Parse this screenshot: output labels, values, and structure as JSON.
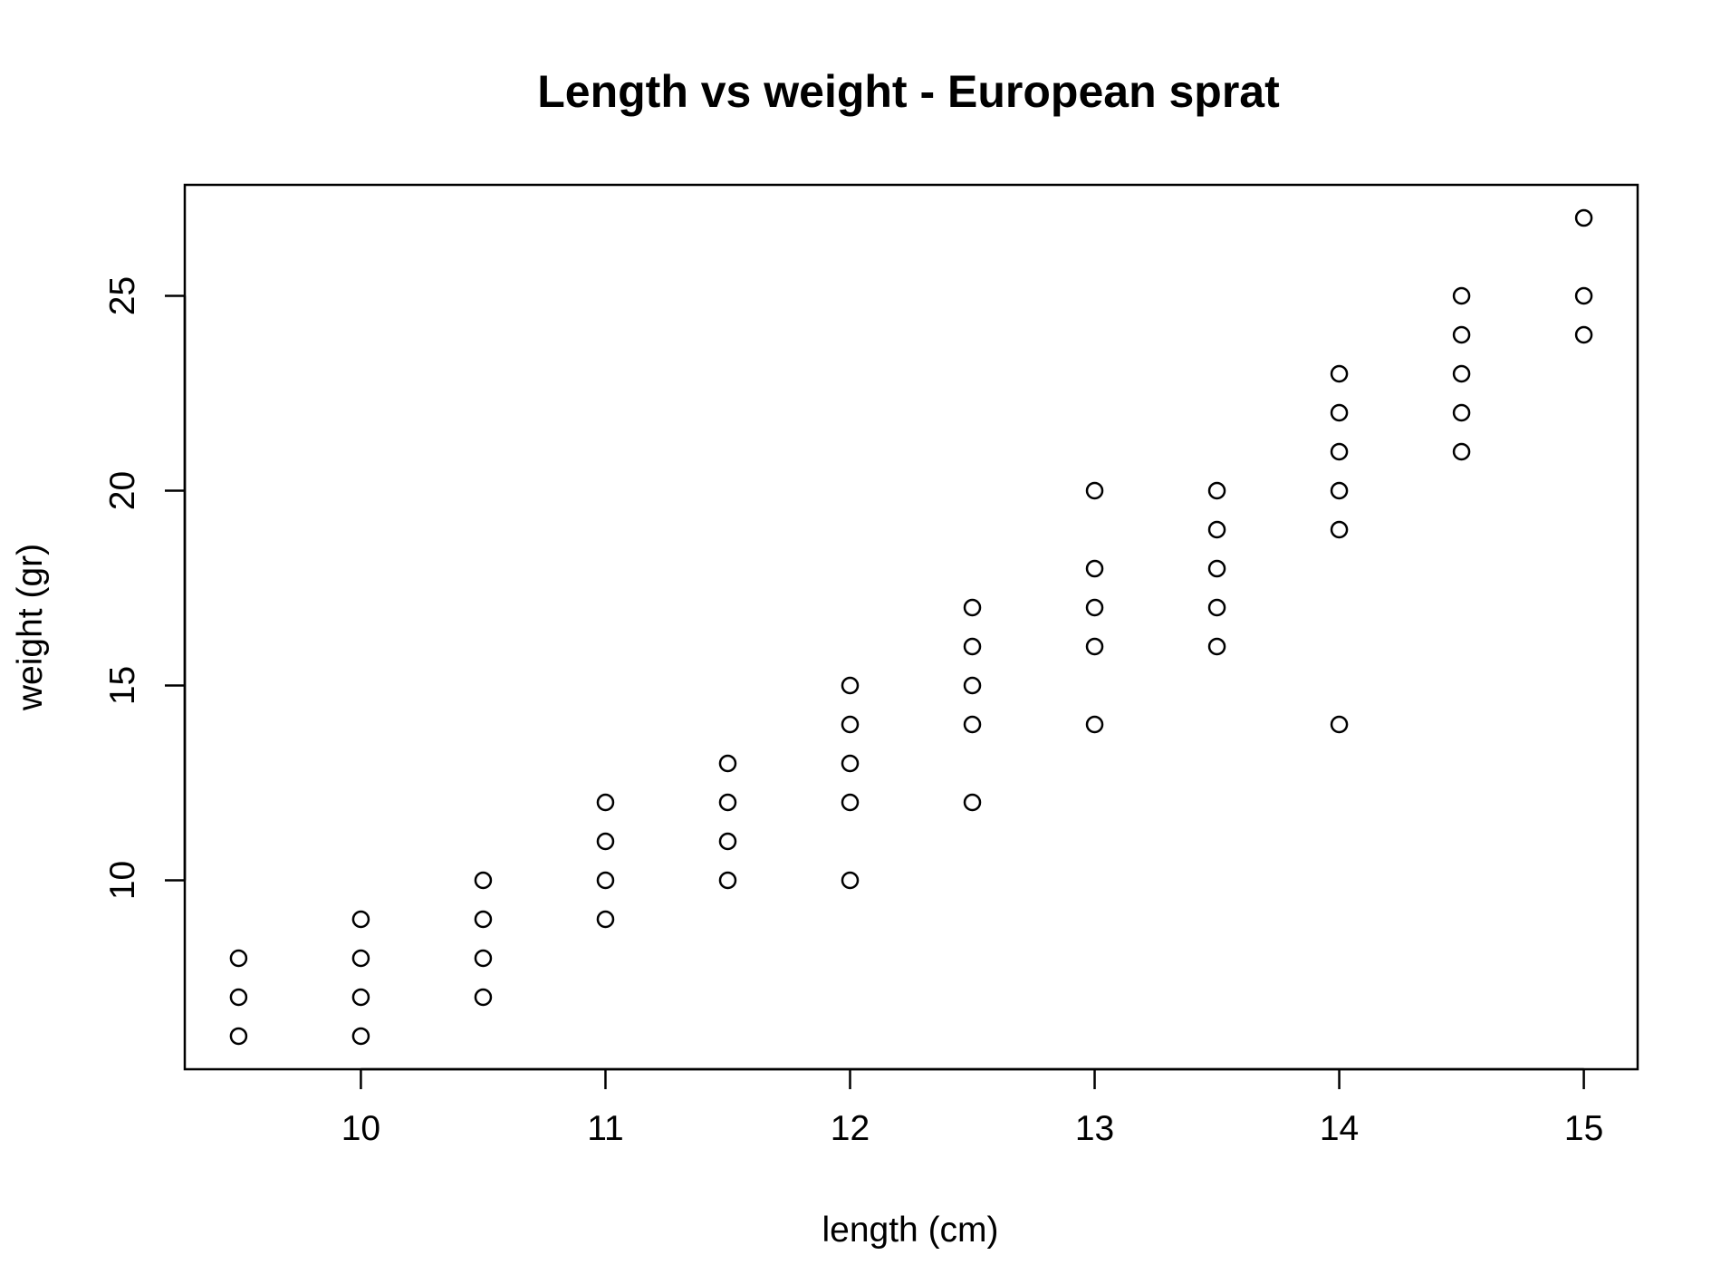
{
  "chart_data": {
    "type": "scatter",
    "title": "Length vs weight - European sprat",
    "xlabel": "length (cm)",
    "ylabel": "weight (gr)",
    "xlim": [
      9.28,
      15.22
    ],
    "ylim": [
      5.15,
      27.85
    ],
    "x_ticks": [
      10,
      11,
      12,
      13,
      14,
      15
    ],
    "y_ticks": [
      10,
      15,
      20,
      25
    ],
    "x_tick_labels": [
      "10",
      "11",
      "12",
      "13",
      "14",
      "15"
    ],
    "y_tick_labels": [
      "10",
      "15",
      "20",
      "25"
    ],
    "grid": false,
    "legend": "none",
    "marker": "open-circle",
    "colors": {
      "points": "#000000",
      "axes": "#000000",
      "background": "#ffffff"
    },
    "points": [
      {
        "x": 9.5,
        "y": 6
      },
      {
        "x": 9.5,
        "y": 7
      },
      {
        "x": 9.5,
        "y": 8
      },
      {
        "x": 10,
        "y": 6
      },
      {
        "x": 10,
        "y": 7
      },
      {
        "x": 10,
        "y": 8
      },
      {
        "x": 10,
        "y": 9
      },
      {
        "x": 10.5,
        "y": 7
      },
      {
        "x": 10.5,
        "y": 8
      },
      {
        "x": 10.5,
        "y": 9
      },
      {
        "x": 10.5,
        "y": 10
      },
      {
        "x": 11,
        "y": 9
      },
      {
        "x": 11,
        "y": 10
      },
      {
        "x": 11,
        "y": 11
      },
      {
        "x": 11,
        "y": 12
      },
      {
        "x": 11.5,
        "y": 10
      },
      {
        "x": 11.5,
        "y": 11
      },
      {
        "x": 11.5,
        "y": 12
      },
      {
        "x": 11.5,
        "y": 13
      },
      {
        "x": 12,
        "y": 10
      },
      {
        "x": 12,
        "y": 12
      },
      {
        "x": 12,
        "y": 13
      },
      {
        "x": 12,
        "y": 14
      },
      {
        "x": 12,
        "y": 15
      },
      {
        "x": 12.5,
        "y": 12
      },
      {
        "x": 12.5,
        "y": 14
      },
      {
        "x": 12.5,
        "y": 15
      },
      {
        "x": 12.5,
        "y": 16
      },
      {
        "x": 12.5,
        "y": 17
      },
      {
        "x": 13,
        "y": 14
      },
      {
        "x": 13,
        "y": 16
      },
      {
        "x": 13,
        "y": 17
      },
      {
        "x": 13,
        "y": 18
      },
      {
        "x": 13,
        "y": 20
      },
      {
        "x": 13.5,
        "y": 16
      },
      {
        "x": 13.5,
        "y": 17
      },
      {
        "x": 13.5,
        "y": 18
      },
      {
        "x": 13.5,
        "y": 19
      },
      {
        "x": 13.5,
        "y": 20
      },
      {
        "x": 14,
        "y": 14
      },
      {
        "x": 14,
        "y": 19
      },
      {
        "x": 14,
        "y": 20
      },
      {
        "x": 14,
        "y": 21
      },
      {
        "x": 14,
        "y": 22
      },
      {
        "x": 14,
        "y": 23
      },
      {
        "x": 14.5,
        "y": 21
      },
      {
        "x": 14.5,
        "y": 22
      },
      {
        "x": 14.5,
        "y": 23
      },
      {
        "x": 14.5,
        "y": 24
      },
      {
        "x": 14.5,
        "y": 25
      },
      {
        "x": 15,
        "y": 24
      },
      {
        "x": 15,
        "y": 25
      },
      {
        "x": 15,
        "y": 27
      }
    ]
  }
}
